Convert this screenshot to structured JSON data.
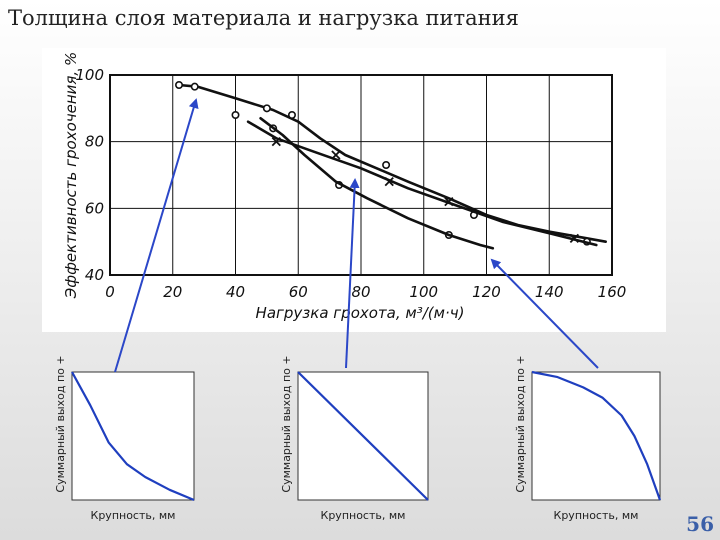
{
  "slide": {
    "title": "Толщина слоя материала и нагрузка питания",
    "page_number": "56"
  },
  "colors": {
    "curve": "#1f3fbf",
    "arrow": "#2b47c8",
    "ink": "#111111"
  },
  "chart_data": [
    {
      "type": "line",
      "title": "",
      "xlabel": "Нагрузка грохота, м³/(м·ч)",
      "ylabel": "Эффективность грохочения, %",
      "xlim": [
        0,
        160
      ],
      "ylim": [
        40,
        100
      ],
      "xticks": [
        "0",
        "20",
        "40",
        "60",
        "80",
        "100",
        "120",
        "140",
        "160"
      ],
      "yticks": [
        "40",
        "60",
        "80",
        "100"
      ],
      "grid": true,
      "series": [
        {
          "marker": "circle",
          "points": [
            [
              22,
              97
            ],
            [
              27,
              96.5
            ],
            [
              40,
              88
            ],
            [
              50,
              90
            ],
            [
              52,
              84
            ],
            [
              58,
              88
            ],
            [
              73,
              67
            ],
            [
              88,
              73
            ],
            [
              108,
              52
            ],
            [
              116,
              58
            ],
            [
              152,
              50
            ]
          ],
          "line": [
            [
              22,
              97
            ],
            [
              28,
              96.5
            ],
            [
              40,
              93
            ],
            [
              52,
              89.5
            ],
            [
              60,
              86
            ],
            [
              67,
              81
            ],
            [
              75,
              76
            ],
            [
              85,
              72
            ],
            [
              95,
              68
            ],
            [
              108,
              63
            ],
            [
              120,
              58
            ],
            [
              130,
              55
            ],
            [
              140,
              53
            ],
            [
              152,
              51
            ],
            [
              158,
              50
            ]
          ]
        },
        {
          "marker": "cross",
          "points": [
            [
              53,
              80
            ],
            [
              72,
              76
            ],
            [
              89,
              68
            ],
            [
              108,
              62
            ],
            [
              148,
              51
            ]
          ],
          "line": [
            [
              44,
              86
            ],
            [
              53,
              81
            ],
            [
              65,
              77
            ],
            [
              80,
              72
            ],
            [
              95,
              66
            ],
            [
              110,
              61
            ],
            [
              125,
              56
            ],
            [
              140,
              52.5
            ],
            [
              155,
              49
            ]
          ]
        },
        {
          "marker": "none",
          "points": [],
          "line": [
            [
              48,
              87
            ],
            [
              55,
              82
            ],
            [
              62,
              76
            ],
            [
              72,
              68
            ],
            [
              82,
              63
            ],
            [
              95,
              57
            ],
            [
              108,
              52
            ],
            [
              118,
              49
            ],
            [
              122,
              48
            ]
          ]
        }
      ]
    },
    {
      "type": "line",
      "xlabel": "Крупность, мм",
      "ylabel": "Суммарный выход по +",
      "series": [
        {
          "x": [
            0,
            0.15,
            0.3,
            0.45,
            0.6,
            0.8,
            1.0
          ],
          "y": [
            1.0,
            0.74,
            0.45,
            0.28,
            0.18,
            0.08,
            0.0
          ]
        }
      ]
    },
    {
      "type": "line",
      "xlabel": "Крупность, мм",
      "ylabel": "Суммарный выход по +",
      "series": [
        {
          "x": [
            0,
            1.0
          ],
          "y": [
            1.0,
            0.0
          ]
        }
      ]
    },
    {
      "type": "line",
      "xlabel": "Крупность, мм",
      "ylabel": "Суммарный выход по +",
      "series": [
        {
          "x": [
            0,
            0.2,
            0.4,
            0.55,
            0.7,
            0.8,
            0.9,
            1.0
          ],
          "y": [
            1.0,
            0.96,
            0.88,
            0.8,
            0.66,
            0.5,
            0.28,
            0.0
          ]
        }
      ]
    }
  ]
}
